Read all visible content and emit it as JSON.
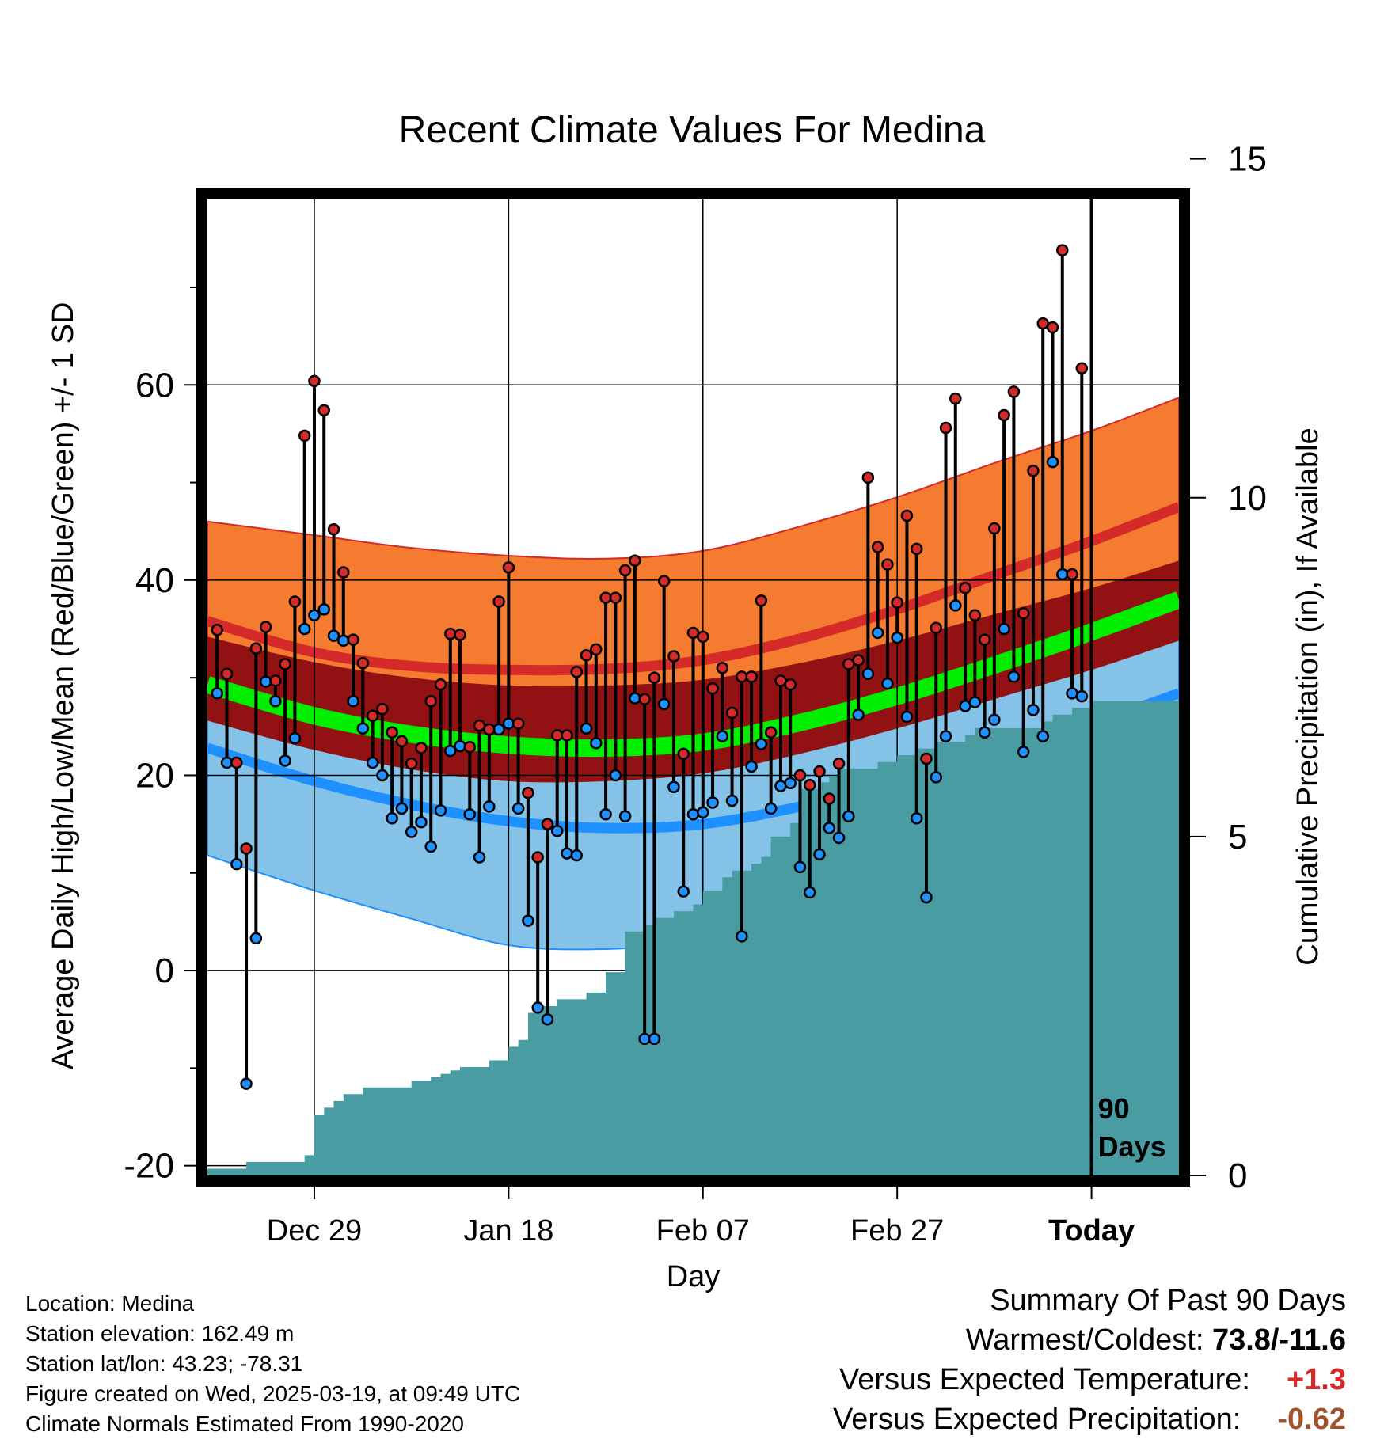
{
  "chart_data": {
    "type": "line",
    "title": "Recent Climate Values For Medina",
    "xlabel": "Day",
    "ylabel": "Average Daily High/Low/Mean (Red/Blue/Green) +/- 1 SD",
    "y2label": "Cumulative Precipitation (in), If Available",
    "x_tick_labels": [
      "Dec 29",
      "Jan 18",
      "Feb 07",
      "Feb 27",
      "Today"
    ],
    "x_tick_days": [
      10,
      30,
      50,
      70,
      90
    ],
    "xlim": [
      -1,
      99
    ],
    "ylim": [
      -21,
      79
    ],
    "y_tick_labels": [
      "-20",
      "0",
      "20",
      "40",
      "60"
    ],
    "y_ticks": [
      -20,
      0,
      20,
      40,
      60
    ],
    "y2lim": [
      0,
      14.4
    ],
    "y2_tick_labels": [
      "0",
      "5",
      "10",
      "15"
    ],
    "y2_ticks": [
      0,
      5,
      10,
      15
    ],
    "today_marker_day": 90,
    "today_label": [
      "90",
      "Days"
    ],
    "colors": {
      "high_band": "#f47b30",
      "high_line": "#d42a2a",
      "overlap_band": "#921214",
      "low_band": "#85c2e8",
      "low_line": "#1e90ff",
      "mean_line": "#00ee00",
      "precip": "#4a9ca3",
      "high_marker": "#d42a2a",
      "low_marker": "#1e90ff"
    },
    "normals": {
      "days": [
        -1,
        10,
        20,
        30,
        40,
        50,
        60,
        70,
        80,
        90,
        99
      ],
      "high_mean": [
        35.8,
        32.6,
        31.2,
        30.8,
        30.9,
        31.8,
        34.0,
        37.0,
        40.5,
        44.0,
        47.5
      ],
      "high_plus_sd": [
        46.0,
        44.6,
        43.3,
        42.5,
        42.2,
        43.0,
        45.5,
        48.5,
        52.0,
        55.3,
        58.7
      ],
      "high_minus_sd": [
        33.0,
        31.0,
        29.2,
        27.8,
        26.8,
        27.0,
        28.2,
        30.0,
        32.2,
        34.0,
        36.0
      ],
      "low_mean": [
        22.8,
        19.4,
        17.0,
        15.3,
        14.6,
        15.0,
        16.8,
        19.2,
        22.2,
        25.3,
        28.4
      ],
      "low_plus_sd": [
        33.0,
        31.0,
        29.2,
        27.8,
        26.8,
        27.0,
        28.2,
        30.0,
        32.2,
        34.0,
        36.0
      ],
      "low_minus_sd": [
        11.8,
        8.2,
        5.3,
        2.6,
        2.2,
        3.0,
        4.5,
        7.0,
        10.5,
        15.2,
        19.4
      ],
      "mean": [
        29.3,
        26.1,
        24.2,
        23.1,
        22.8,
        23.4,
        25.4,
        28.1,
        31.3,
        34.7,
        38.0
      ],
      "dark_band_top": [
        34.2,
        31.6,
        30.0,
        29.2,
        29.2,
        29.8,
        31.5,
        33.8,
        36.5,
        39.2,
        42.0
      ],
      "dark_band_bottom": [
        25.6,
        22.6,
        20.6,
        19.4,
        19.4,
        20.2,
        22.2,
        24.8,
        27.8,
        30.8,
        33.8
      ]
    },
    "series": [
      {
        "name": "High",
        "days": [
          0,
          1,
          2,
          3,
          4,
          5,
          6,
          7,
          8,
          9,
          10,
          11,
          12,
          13,
          14,
          15,
          16,
          17,
          18,
          19,
          20,
          21,
          22,
          23,
          24,
          25,
          26,
          27,
          28,
          29,
          30,
          31,
          32,
          33,
          34,
          35,
          36,
          37,
          38,
          39,
          40,
          41,
          42,
          43,
          44,
          45,
          46,
          47,
          48,
          49,
          50,
          51,
          52,
          53,
          54,
          55,
          56,
          57,
          58,
          59,
          60,
          61,
          62,
          63,
          64,
          65,
          66,
          67,
          68,
          69,
          70,
          71,
          72,
          73,
          74,
          75,
          76,
          77,
          78,
          79,
          80,
          81,
          82,
          83,
          84,
          85,
          86,
          87,
          88,
          89
        ],
        "values": [
          34.9,
          30.4,
          21.3,
          12.5,
          33.0,
          35.2,
          29.7,
          31.4,
          37.8,
          54.8,
          60.4,
          57.4,
          45.2,
          40.8,
          33.9,
          31.5,
          26.1,
          26.8,
          24.4,
          23.5,
          21.2,
          22.8,
          27.6,
          29.3,
          34.5,
          34.4,
          22.9,
          25.1,
          24.7,
          37.8,
          41.3,
          25.3,
          18.2,
          11.6,
          15.0,
          24.1,
          24.1,
          30.6,
          32.3,
          32.9,
          38.2,
          38.2,
          41.0,
          42.0,
          27.8,
          30.0,
          39.9,
          32.2,
          22.2,
          34.6,
          34.2,
          28.9,
          31.0,
          26.4,
          30.1,
          30.1,
          37.9,
          24.4,
          29.7,
          29.3,
          20.0,
          19.0,
          20.4,
          17.6,
          21.2,
          31.4,
          31.8,
          50.5,
          43.4,
          41.6,
          37.7,
          46.6,
          43.2,
          21.7,
          35.1,
          55.6,
          58.6,
          39.2,
          36.4,
          33.9,
          45.3,
          56.9,
          59.3,
          36.6,
          51.2,
          66.3,
          65.9,
          73.8,
          40.6,
          61.7
        ]
      },
      {
        "name": "Low",
        "days": [
          0,
          1,
          2,
          3,
          4,
          5,
          6,
          7,
          8,
          9,
          10,
          11,
          12,
          13,
          14,
          15,
          16,
          17,
          18,
          19,
          20,
          21,
          22,
          23,
          24,
          25,
          26,
          27,
          28,
          29,
          30,
          31,
          32,
          33,
          34,
          35,
          36,
          37,
          38,
          39,
          40,
          41,
          42,
          43,
          44,
          45,
          46,
          47,
          48,
          49,
          50,
          51,
          52,
          53,
          54,
          55,
          56,
          57,
          58,
          59,
          60,
          61,
          62,
          63,
          64,
          65,
          66,
          67,
          68,
          69,
          70,
          71,
          72,
          73,
          74,
          75,
          76,
          77,
          78,
          79,
          80,
          81,
          82,
          83,
          84,
          85,
          86,
          87,
          88,
          89
        ],
        "values": [
          28.4,
          21.3,
          10.9,
          -11.6,
          3.3,
          29.6,
          27.6,
          21.5,
          23.8,
          35.0,
          36.4,
          37.0,
          34.3,
          33.8,
          27.6,
          24.8,
          21.3,
          20.0,
          15.6,
          16.6,
          14.2,
          15.2,
          12.7,
          16.4,
          22.5,
          23.0,
          16.0,
          11.6,
          16.8,
          24.7,
          25.3,
          16.6,
          5.1,
          -3.8,
          -5.0,
          14.3,
          12.0,
          11.8,
          24.8,
          23.3,
          16.0,
          20.0,
          15.8,
          27.9,
          -7.0,
          -7.0,
          27.3,
          18.8,
          8.1,
          16.0,
          16.2,
          17.2,
          24.0,
          17.4,
          3.5,
          20.9,
          23.2,
          16.6,
          18.9,
          19.2,
          10.6,
          8.0,
          11.9,
          14.6,
          13.6,
          15.8,
          26.2,
          30.4,
          34.6,
          29.4,
          34.1,
          26.0,
          15.6,
          7.5,
          19.8,
          24.0,
          37.4,
          27.1,
          27.5,
          24.4,
          25.7,
          35.0,
          30.1,
          22.4,
          26.7,
          24.0,
          52.1,
          40.6,
          28.4,
          28.1
        ]
      },
      {
        "name": "Cumulative Precipitation",
        "days": [
          -1,
          3,
          4,
          9,
          10,
          11,
          12,
          13,
          14,
          15,
          20,
          22,
          23,
          24,
          25,
          28,
          30,
          31,
          32,
          33,
          34,
          35,
          36,
          37,
          38,
          40,
          41,
          42,
          43,
          44,
          45,
          46,
          47,
          48,
          49,
          50,
          51,
          52,
          53,
          54,
          55,
          56,
          57,
          58,
          59,
          60,
          62,
          63,
          64,
          65,
          66,
          67,
          68,
          69,
          70,
          71,
          72,
          73,
          74,
          75,
          76,
          77,
          78,
          80,
          82,
          84,
          85,
          86,
          87,
          88,
          89,
          90,
          99
        ],
        "values": [
          0.1,
          0.2,
          0.2,
          0.3,
          0.9,
          1.0,
          1.1,
          1.2,
          1.2,
          1.3,
          1.4,
          1.45,
          1.5,
          1.55,
          1.6,
          1.7,
          1.9,
          2.0,
          2.4,
          2.5,
          2.5,
          2.6,
          2.6,
          2.6,
          2.7,
          3.0,
          3.0,
          3.6,
          3.6,
          3.7,
          3.8,
          3.8,
          3.9,
          3.9,
          4.0,
          4.2,
          4.2,
          4.4,
          4.5,
          4.5,
          4.6,
          4.7,
          5.0,
          5.0,
          5.2,
          5.7,
          5.8,
          5.9,
          6.0,
          6.0,
          6.0,
          6.0,
          6.1,
          6.1,
          6.2,
          6.2,
          6.3,
          6.3,
          6.4,
          6.4,
          6.4,
          6.5,
          6.6,
          6.6,
          6.6,
          6.6,
          6.7,
          6.8,
          6.8,
          6.9,
          6.9,
          7.0,
          7.0
        ]
      }
    ]
  },
  "info": {
    "location": "Location: Medina",
    "elevation": "Station elevation: 162.49 m",
    "latlon": "Station lat/lon: 43.23; -78.31",
    "created": "Figure created on Wed, 2025-03-19, at 09:49 UTC",
    "normals": "Climate Normals Estimated From 1990-2020"
  },
  "summary": {
    "title": "Summary Of Past 90 Days",
    "warmest_coldest_label": "Warmest/Coldest:",
    "warmest_coldest_value": "73.8/-11.6",
    "temp_label": "Versus Expected Temperature:",
    "temp_value": "+1.3",
    "precip_label": "Versus Expected Precipitation:",
    "precip_value": "-0.62"
  }
}
